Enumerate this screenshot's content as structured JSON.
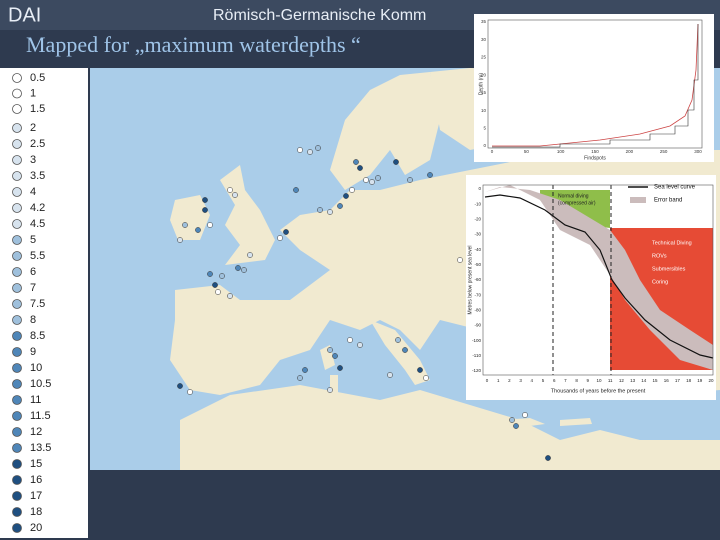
{
  "header": {
    "logo": "DAI",
    "institution": "Römisch-Germanische Komm"
  },
  "title": "Mapped for „maximum waterdepths “",
  "legend": {
    "items": [
      {
        "label": "0.5",
        "color": "#ffffff"
      },
      {
        "label": "1",
        "color": "#ffffff"
      },
      {
        "label": "1.5",
        "color": "#ffffff"
      },
      {
        "label": "2",
        "color": "#d7e3ee"
      },
      {
        "label": "2.5",
        "color": "#d7e3ee"
      },
      {
        "label": "3",
        "color": "#d7e3ee"
      },
      {
        "label": "3.5",
        "color": "#d7e3ee"
      },
      {
        "label": "4",
        "color": "#d7e3ee"
      },
      {
        "label": "4.2",
        "color": "#d7e3ee"
      },
      {
        "label": "4.5",
        "color": "#d7e3ee"
      },
      {
        "label": "5",
        "color": "#9fc0dc"
      },
      {
        "label": "5.5",
        "color": "#9fc0dc"
      },
      {
        "label": "6",
        "color": "#9fc0dc"
      },
      {
        "label": "7",
        "color": "#9fc0dc"
      },
      {
        "label": "7.5",
        "color": "#9fc0dc"
      },
      {
        "label": "8",
        "color": "#9fc0dc"
      },
      {
        "label": "8.5",
        "color": "#4f86b8"
      },
      {
        "label": "9",
        "color": "#4f86b8"
      },
      {
        "label": "10",
        "color": "#4f86b8"
      },
      {
        "label": "10.5",
        "color": "#4f86b8"
      },
      {
        "label": "11",
        "color": "#4f86b8"
      },
      {
        "label": "11.5",
        "color": "#4f86b8"
      },
      {
        "label": "12",
        "color": "#4f86b8"
      },
      {
        "label": "13.5",
        "color": "#4f86b8"
      },
      {
        "label": "15",
        "color": "#1f4f80"
      },
      {
        "label": "16",
        "color": "#1f4f80"
      },
      {
        "label": "17",
        "color": "#1f4f80"
      },
      {
        "label": "18",
        "color": "#1f4f80"
      },
      {
        "label": "20",
        "color": "#1f4f80"
      }
    ]
  },
  "depth_chart": {
    "y_label": "Depth (m)",
    "x_label": "Findspots",
    "yticks": [
      "0",
      "5",
      "10",
      "15",
      "20",
      "25",
      "30",
      "35"
    ],
    "xticks": [
      "0",
      "50",
      "100",
      "150",
      "200",
      "250",
      "300"
    ]
  },
  "sea_level_chart": {
    "legend": [
      "Sea level curve",
      "Error band"
    ],
    "zones": [
      "Normal diving",
      "(compressed air)",
      "Technical Diving",
      "ROVs",
      "Submersibles",
      "Coring"
    ],
    "y_label": "Metres below present sea level",
    "x_label": "Thousands of years before the present",
    "yticks": [
      "0",
      "-10",
      "-20",
      "-30",
      "-40",
      "-50",
      "-60",
      "-70",
      "-80",
      "-90",
      "-100",
      "-110",
      "-120"
    ],
    "xticks": [
      "0",
      "1",
      "2",
      "3",
      "4",
      "5",
      "6",
      "7",
      "8",
      "9",
      "10",
      "11",
      "12",
      "13",
      "14",
      "15",
      "16",
      "17",
      "18",
      "19",
      "20"
    ]
  }
}
